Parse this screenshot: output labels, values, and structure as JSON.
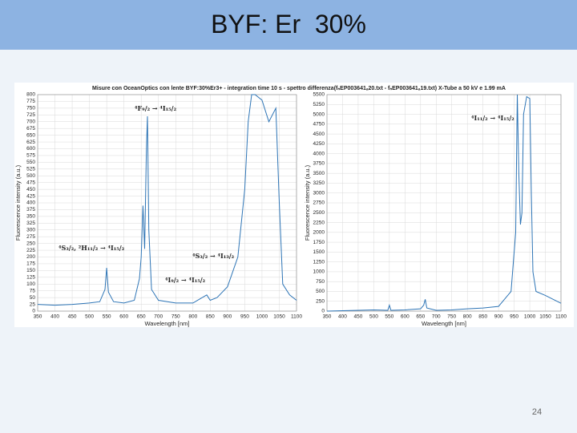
{
  "slide": {
    "title": "BYF: Er  30%",
    "page_number": "24"
  },
  "chart_data": [
    {
      "type": "line",
      "title": "Misure con OceanOptics con lente BYF:30%Er3+ - integration time 10 s - spettro differenza(fₙEP003641ₐ20.txt - fₙEP003641ₐ19.txt) X-Tube a 50 kV e 1.99 mA",
      "x_label": "Wavelength [nm]",
      "y_label": "Fluorescence intensity (a.u.)",
      "x": [
        350,
        400,
        450,
        500,
        530,
        545,
        550,
        555,
        570,
        600,
        630,
        645,
        650,
        655,
        660,
        665,
        668,
        672,
        680,
        700,
        750,
        800,
        820,
        840,
        850,
        870,
        900,
        930,
        950,
        960,
        970,
        980,
        1000,
        1020,
        1040,
        1050,
        1060,
        1080,
        1100
      ],
      "series": [
        {
          "color": "#2e75b6",
          "values": [
            25,
            22,
            25,
            30,
            35,
            80,
            160,
            70,
            35,
            30,
            40,
            120,
            200,
            390,
            230,
            600,
            720,
            300,
            80,
            40,
            30,
            30,
            45,
            60,
            40,
            50,
            90,
            200,
            450,
            700,
            800,
            800,
            780,
            700,
            750,
            400,
            100,
            60,
            40
          ]
        }
      ],
      "xlim": [
        350,
        1100
      ],
      "ylim": [
        0,
        800
      ],
      "xticks": [
        350,
        400,
        450,
        500,
        550,
        600,
        650,
        700,
        750,
        800,
        850,
        900,
        950,
        1000,
        1050,
        1100
      ],
      "yticks": [
        0,
        25,
        50,
        75,
        100,
        125,
        150,
        175,
        200,
        225,
        250,
        275,
        300,
        325,
        350,
        375,
        400,
        425,
        450,
        475,
        500,
        525,
        550,
        575,
        600,
        625,
        650,
        675,
        700,
        725,
        750,
        775,
        800
      ],
      "grid": true,
      "annotations": [
        "⁴F₉/₂ → ⁴I₁₅/₂",
        "⁴S₃/₂, ²H₁₁/₂ → ⁴I₁₅/₂",
        "⁴S₃/₂ → ⁴I₁₃/₂",
        "⁴I₉/₂ → ⁴I₁₅/₂"
      ]
    },
    {
      "type": "line",
      "x_label": "Wavelength [nm]",
      "y_label": "Fluorescence intensity (a.u.)",
      "x": [
        350,
        400,
        450,
        500,
        545,
        550,
        555,
        600,
        650,
        660,
        665,
        670,
        700,
        750,
        800,
        850,
        900,
        940,
        955,
        960,
        965,
        970,
        975,
        980,
        990,
        1000,
        1005,
        1010,
        1020,
        1050,
        1100
      ],
      "series": [
        {
          "color": "#2e75b6",
          "values": [
            0,
            10,
            20,
            30,
            20,
            150,
            20,
            30,
            60,
            150,
            300,
            80,
            20,
            30,
            60,
            80,
            120,
            500,
            2000,
            5500,
            3500,
            2200,
            2500,
            5000,
            5450,
            5400,
            3000,
            1000,
            500,
            400,
            200
          ]
        }
      ],
      "xlim": [
        350,
        1100
      ],
      "ylim": [
        0,
        5500
      ],
      "xticks": [
        350,
        400,
        450,
        500,
        550,
        600,
        650,
        700,
        750,
        800,
        850,
        900,
        950,
        1000,
        1050,
        1100
      ],
      "yticks": [
        0,
        250,
        500,
        750,
        1000,
        1250,
        1500,
        1750,
        2000,
        2250,
        2500,
        2750,
        3000,
        3250,
        3500,
        3750,
        4000,
        4250,
        4500,
        4750,
        5000,
        5250,
        5500
      ],
      "grid": true,
      "annotations": [
        "⁴I₁₁/₂ → ⁴I₁₅/₂"
      ]
    }
  ]
}
